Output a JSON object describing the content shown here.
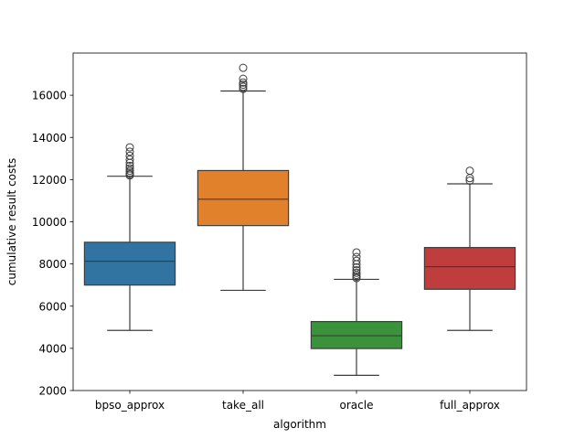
{
  "chart_data": {
    "type": "box",
    "title": "",
    "xlabel": "algorithm",
    "ylabel": "cumulative result costs",
    "ylim": [
      2000,
      18000
    ],
    "yticks": [
      2000,
      4000,
      6000,
      8000,
      10000,
      12000,
      14000,
      16000
    ],
    "ytick_labels": [
      "2000",
      "4000",
      "6000",
      "8000",
      "10000",
      "12000",
      "14000",
      "16000"
    ],
    "grid": false,
    "legend": "none",
    "categories": [
      "bpso_approx",
      "take_all",
      "oracle",
      "full_approx"
    ],
    "boxes": [
      {
        "category": "bpso_approx",
        "color": "#3274a1",
        "whisker_low": 4850,
        "q1": 7000,
        "median": 8130,
        "q3": 9030,
        "whisker_high": 12160,
        "outliers": [
          12200,
          12260,
          12330,
          12420,
          12530,
          12650,
          12790,
          12950,
          13130,
          13320,
          13530
        ]
      },
      {
        "category": "take_all",
        "color": "#e1812c",
        "whisker_low": 6750,
        "q1": 9820,
        "median": 11070,
        "q3": 12430,
        "whisker_high": 16200,
        "outliers": [
          16300,
          16400,
          16500,
          16600,
          16780,
          17300
        ]
      },
      {
        "category": "oracle",
        "color": "#3a923a",
        "whisker_low": 2720,
        "q1": 3990,
        "median": 4600,
        "q3": 5270,
        "whisker_high": 7270,
        "outliers": [
          7330,
          7400,
          7480,
          7580,
          7700,
          7840,
          7990,
          8150,
          8330,
          8550
        ]
      },
      {
        "category": "full_approx",
        "color": "#c03d3e",
        "whisker_low": 4850,
        "q1": 6800,
        "median": 7870,
        "q3": 8780,
        "whisker_high": 11800,
        "outliers": [
          11950,
          12070,
          12420
        ]
      }
    ]
  }
}
